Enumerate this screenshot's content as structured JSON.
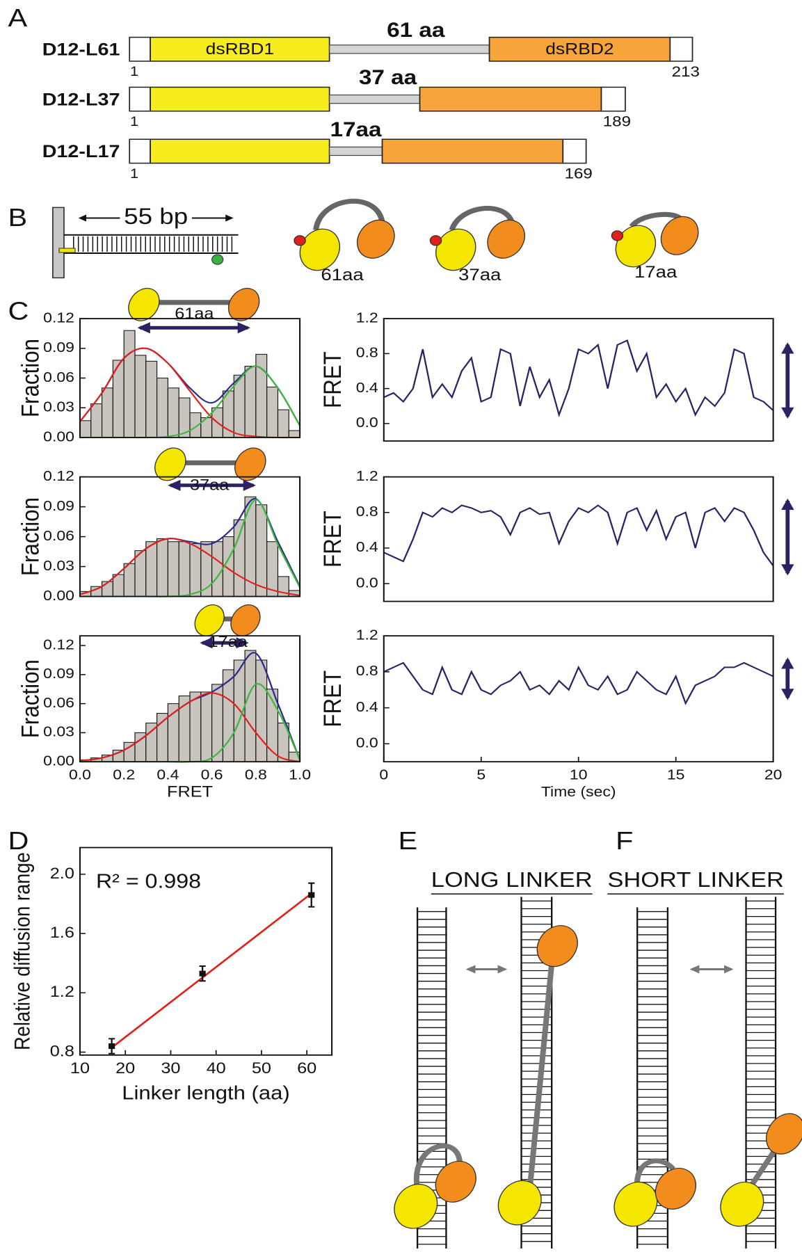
{
  "panels": [
    "A",
    "B",
    "C",
    "D",
    "E",
    "F"
  ],
  "constructs": {
    "domains": [
      "dsRBD1",
      "dsRBD2"
    ],
    "rows": [
      {
        "name": "D12-L61",
        "linker": "61 aa",
        "start": 1,
        "end": 213
      },
      {
        "name": "D12-L37",
        "linker": "37 aa",
        "start": 1,
        "end": 189
      },
      {
        "name": "D12-L17",
        "linker": "17aa",
        "start": 1,
        "end": 169
      }
    ]
  },
  "dna": {
    "length": "55 bp",
    "cartoons": [
      "61aa",
      "37aa",
      "17aa"
    ]
  },
  "mechanisms": [
    {
      "title": "LONG LINKER"
    },
    {
      "title": "SHORT LINKER"
    }
  ],
  "chart_data": [
    {
      "type": "histogram",
      "annotation": "61aa",
      "ylabel": "Fraction",
      "color": "#c9c4be",
      "bins": [
        0,
        0.05,
        0.1,
        0.15,
        0.2,
        0.25,
        0.3,
        0.35,
        0.4,
        0.45,
        0.5,
        0.55,
        0.6,
        0.65,
        0.7,
        0.75,
        0.8,
        0.85,
        0.9,
        0.95,
        1
      ],
      "values": [
        0.017,
        0.034,
        0.05,
        0.078,
        0.108,
        0.083,
        0.077,
        0.06,
        0.05,
        0.04,
        0.025,
        0.02,
        0.03,
        0.047,
        0.063,
        0.072,
        0.084,
        0.051,
        0.028,
        0.007
      ],
      "fits": {
        "x": [
          0,
          0.1,
          0.2,
          0.3,
          0.4,
          0.5,
          0.6,
          0.7,
          0.8,
          0.9,
          1
        ],
        "series": [
          {
            "color": "#2a2a8c",
            "values": [
              0.016,
              0.045,
              0.08,
              0.09,
              0.075,
              0.05,
              0.035,
              0.055,
              0.072,
              0.05,
              0.012
            ]
          },
          {
            "color": "#e0201a",
            "values": [
              0.016,
              0.045,
              0.08,
              0.09,
              0.075,
              0.047,
              0.02,
              0.005,
              0.001,
              0,
              0
            ]
          },
          {
            "color": "#3cb83c",
            "values": [
              0,
              0,
              0,
              0,
              0.001,
              0.007,
              0.025,
              0.052,
              0.072,
              0.05,
              0.012
            ]
          }
        ]
      },
      "xlim": [
        0,
        1
      ],
      "ylim": [
        0,
        0.12
      ],
      "yticks": [
        {
          "value": 0,
          "label": "0.00"
        },
        0.03,
        0.06,
        0.09,
        0.12
      ]
    },
    {
      "type": "histogram",
      "annotation": "37aa",
      "ylabel": "Fraction",
      "color": "#c9c4be",
      "bins": [
        0,
        0.05,
        0.1,
        0.15,
        0.2,
        0.25,
        0.3,
        0.35,
        0.4,
        0.45,
        0.5,
        0.55,
        0.6,
        0.65,
        0.7,
        0.75,
        0.8,
        0.85,
        0.9,
        0.95,
        1
      ],
      "values": [
        0.005,
        0.01,
        0.015,
        0.022,
        0.033,
        0.046,
        0.055,
        0.058,
        0.055,
        0.055,
        0.053,
        0.055,
        0.055,
        0.06,
        0.077,
        0.1,
        0.092,
        0.055,
        0.02,
        0.006
      ],
      "fits": {
        "x": [
          0,
          0.1,
          0.2,
          0.3,
          0.4,
          0.5,
          0.6,
          0.7,
          0.8,
          0.9,
          1
        ],
        "series": [
          {
            "color": "#2a2a8c",
            "values": [
              0.002,
              0.01,
              0.028,
              0.048,
              0.058,
              0.055,
              0.053,
              0.07,
              0.098,
              0.055,
              0.01
            ]
          },
          {
            "color": "#e0201a",
            "values": [
              0.002,
              0.01,
              0.028,
              0.048,
              0.058,
              0.053,
              0.04,
              0.024,
              0.012,
              0.005,
              0.001
            ]
          },
          {
            "color": "#3cb83c",
            "values": [
              0,
              0,
              0,
              0,
              0,
              0.002,
              0.013,
              0.048,
              0.097,
              0.052,
              0.009
            ]
          }
        ]
      },
      "xlim": [
        0,
        1
      ],
      "ylim": [
        0,
        0.12
      ],
      "yticks": [
        {
          "value": 0,
          "label": "0.00"
        },
        0.03,
        0.06,
        0.09,
        0.12
      ]
    },
    {
      "type": "histogram",
      "annotation": "17aa",
      "ylabel": "Fraction",
      "xlabel": "FRET",
      "color": "#c9c4be",
      "bins": [
        0,
        0.05,
        0.1,
        0.15,
        0.2,
        0.25,
        0.3,
        0.35,
        0.4,
        0.45,
        0.5,
        0.55,
        0.6,
        0.65,
        0.7,
        0.75,
        0.8,
        0.85,
        0.9,
        0.95,
        1
      ],
      "values": [
        0.002,
        0.004,
        0.007,
        0.012,
        0.02,
        0.03,
        0.04,
        0.05,
        0.06,
        0.068,
        0.072,
        0.072,
        0.08,
        0.095,
        0.105,
        0.115,
        0.105,
        0.075,
        0.04,
        0.01
      ],
      "fits": {
        "x": [
          0,
          0.1,
          0.2,
          0.3,
          0.4,
          0.5,
          0.6,
          0.7,
          0.8,
          0.9,
          1
        ],
        "series": [
          {
            "color": "#2a2a8c",
            "values": [
              0.001,
              0.004,
              0.012,
              0.027,
              0.046,
              0.062,
              0.072,
              0.088,
              0.112,
              0.06,
              0.002
            ]
          },
          {
            "color": "#e0201a",
            "values": [
              0.001,
              0.004,
              0.012,
              0.027,
              0.046,
              0.062,
              0.071,
              0.06,
              0.03,
              0.006,
              0
            ]
          },
          {
            "color": "#3cb83c",
            "values": [
              0,
              0,
              0,
              0,
              0,
              0,
              0.004,
              0.03,
              0.08,
              0.053,
              0.002
            ]
          }
        ]
      },
      "xlim": [
        0,
        1
      ],
      "ylim": [
        0,
        0.13
      ],
      "yticks": [
        {
          "value": 0,
          "label": "0.00"
        },
        0.03,
        0.06,
        0.09,
        0.12
      ],
      "xticks": [
        {
          "value": 0,
          "label": "0.0"
        },
        0.2,
        0.4,
        0.6,
        0.8,
        {
          "value": 1,
          "label": "1.0"
        }
      ]
    },
    {
      "type": "line",
      "ylabel": "FRET",
      "color": "#2e2163",
      "x": [
        0,
        0.5,
        1,
        1.5,
        2,
        2.5,
        3,
        3.5,
        4,
        4.5,
        5,
        5.5,
        6,
        6.5,
        7,
        7.5,
        8,
        8.5,
        9,
        9.5,
        10,
        10.5,
        11,
        11.5,
        12,
        12.5,
        13,
        13.5,
        14,
        14.5,
        15,
        15.5,
        16,
        16.5,
        17,
        17.5,
        18,
        18.5,
        19,
        19.5,
        20
      ],
      "values": [
        0.3,
        0.35,
        0.25,
        0.4,
        0.85,
        0.3,
        0.45,
        0.3,
        0.6,
        0.75,
        0.25,
        0.3,
        0.85,
        0.8,
        0.2,
        0.65,
        0.3,
        0.5,
        0.1,
        0.4,
        0.85,
        0.8,
        0.9,
        0.4,
        0.9,
        0.95,
        0.6,
        0.8,
        0.3,
        0.45,
        0.25,
        0.4,
        0.1,
        0.3,
        0.2,
        0.35,
        0.85,
        0.8,
        0.3,
        0.25,
        0.15
      ],
      "xlim": [
        0,
        20
      ],
      "ylim": [
        -0.2,
        1.2
      ],
      "yticks": [
        {
          "value": 0,
          "label": "0.0"
        },
        0.4,
        0.8,
        1.2
      ]
    },
    {
      "type": "line",
      "ylabel": "FRET",
      "color": "#2e2163",
      "x": [
        0,
        0.5,
        1,
        1.5,
        2,
        2.5,
        3,
        3.5,
        4,
        4.5,
        5,
        5.5,
        6,
        6.5,
        7,
        7.5,
        8,
        8.5,
        9,
        9.5,
        10,
        10.5,
        11,
        11.5,
        12,
        12.5,
        13,
        13.5,
        14,
        14.5,
        15,
        15.5,
        16,
        16.5,
        17,
        17.5,
        18,
        18.5,
        19,
        19.5,
        20
      ],
      "values": [
        0.35,
        0.3,
        0.25,
        0.5,
        0.8,
        0.75,
        0.85,
        0.8,
        0.88,
        0.85,
        0.8,
        0.82,
        0.75,
        0.55,
        0.8,
        0.85,
        0.78,
        0.8,
        0.45,
        0.7,
        0.85,
        0.8,
        0.88,
        0.8,
        0.45,
        0.8,
        0.85,
        0.6,
        0.82,
        0.5,
        0.75,
        0.8,
        0.4,
        0.8,
        0.85,
        0.7,
        0.85,
        0.8,
        0.6,
        0.35,
        0.2
      ],
      "xlim": [
        0,
        20
      ],
      "ylim": [
        -0.2,
        1.2
      ],
      "yticks": [
        {
          "value": 0,
          "label": "0.0"
        },
        0.4,
        0.8,
        1.2
      ]
    },
    {
      "type": "line",
      "ylabel": "FRET",
      "xlabel": "Time (sec)",
      "color": "#2e2163",
      "x": [
        0,
        0.5,
        1,
        1.5,
        2,
        2.5,
        3,
        3.5,
        4,
        4.5,
        5,
        5.5,
        6,
        6.5,
        7,
        7.5,
        8,
        8.5,
        9,
        9.5,
        10,
        10.5,
        11,
        11.5,
        12,
        12.5,
        13,
        13.5,
        14,
        14.5,
        15,
        15.5,
        16,
        16.5,
        17,
        17.5,
        18,
        18.5,
        19,
        19.5,
        20
      ],
      "values": [
        0.8,
        0.85,
        0.9,
        0.75,
        0.6,
        0.55,
        0.85,
        0.6,
        0.55,
        0.8,
        0.6,
        0.55,
        0.65,
        0.7,
        0.8,
        0.6,
        0.65,
        0.55,
        0.7,
        0.6,
        0.85,
        0.65,
        0.6,
        0.75,
        0.55,
        0.6,
        0.8,
        0.7,
        0.6,
        0.55,
        0.75,
        0.45,
        0.65,
        0.7,
        0.75,
        0.85,
        0.85,
        0.9,
        0.85,
        0.8,
        0.75
      ],
      "xlim": [
        0,
        20
      ],
      "ylim": [
        -0.2,
        1.2
      ],
      "yticks": [
        {
          "value": 0,
          "label": "0.0"
        },
        0.4,
        0.8,
        1.2
      ],
      "xticks": [
        0,
        5,
        10,
        15,
        20
      ]
    },
    {
      "type": "scatter",
      "xlabel": "Linker length (aa)",
      "ylabel": "Relative diffusion range",
      "annotation": "R² = 0.998",
      "color": "#111111",
      "x": [
        17,
        37,
        61
      ],
      "values": [
        0.84,
        1.33,
        1.86
      ],
      "errors": [
        0.05,
        0.05,
        0.08
      ],
      "fit": {
        "x": [
          17,
          61
        ],
        "values": [
          0.83,
          1.87
        ],
        "color": "#e0201a"
      },
      "xlim": [
        10,
        65.5
      ],
      "ylim": [
        0.78,
        2.18
      ],
      "xticks": [
        10,
        20,
        30,
        40,
        50,
        60
      ],
      "yticks": [
        0.8,
        1.2,
        1.6,
        {
          "value": 2,
          "label": "2.0"
        }
      ]
    }
  ]
}
